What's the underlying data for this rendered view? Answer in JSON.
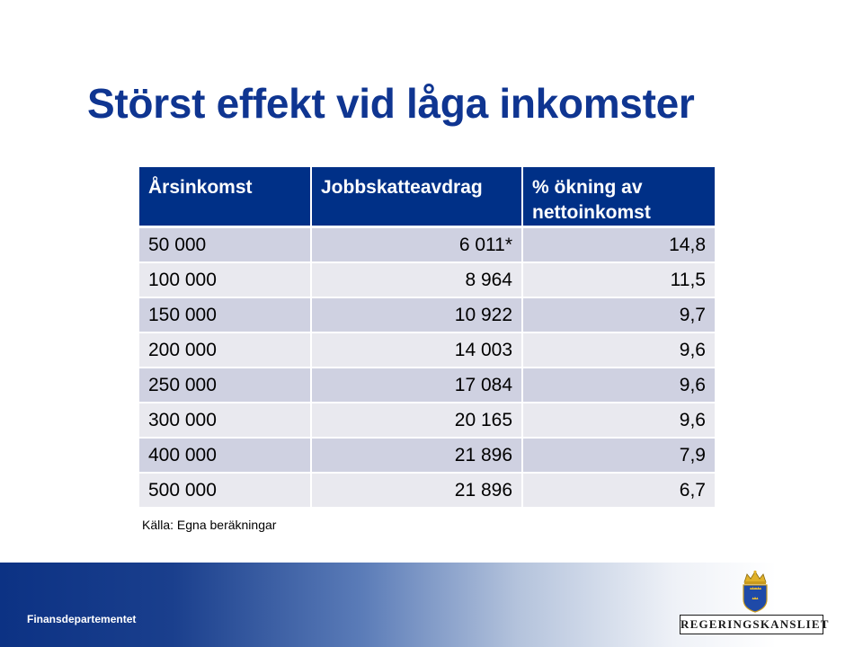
{
  "title": "Störst effekt vid låga inkomster",
  "table": {
    "headers": {
      "col1": "Årsinkomst",
      "col2": "Jobbskatteavdrag",
      "col3": "% ökning av nettoinkomst"
    },
    "rows": [
      {
        "income": "50 000",
        "deduction": "6 011*",
        "increase": "14,8"
      },
      {
        "income": "100 000",
        "deduction": "8 964",
        "increase": "11,5"
      },
      {
        "income": "150 000",
        "deduction": "10 922",
        "increase": "9,7"
      },
      {
        "income": "200 000",
        "deduction": "14 003",
        "increase": "9,6"
      },
      {
        "income": "250 000",
        "deduction": "17 084",
        "increase": "9,6"
      },
      {
        "income": "300 000",
        "deduction": "20 165",
        "increase": "9,6"
      },
      {
        "income": "400 000",
        "deduction": "21 896",
        "increase": "7,9"
      },
      {
        "income": "500 000",
        "deduction": "21 896",
        "increase": "6,7"
      }
    ]
  },
  "source": "Källa: Egna beräkningar",
  "footer": {
    "department": "Finansdepartementet",
    "logo_text": "REGERINGSKANSLIET",
    "logo_icon": "crowned-shield-icon"
  },
  "colors": {
    "title": "#0f3591",
    "header_bg": "#003087",
    "row_odd": "#cfd1e1",
    "row_even": "#e9e9ef",
    "footer_start": "#0c3284"
  }
}
